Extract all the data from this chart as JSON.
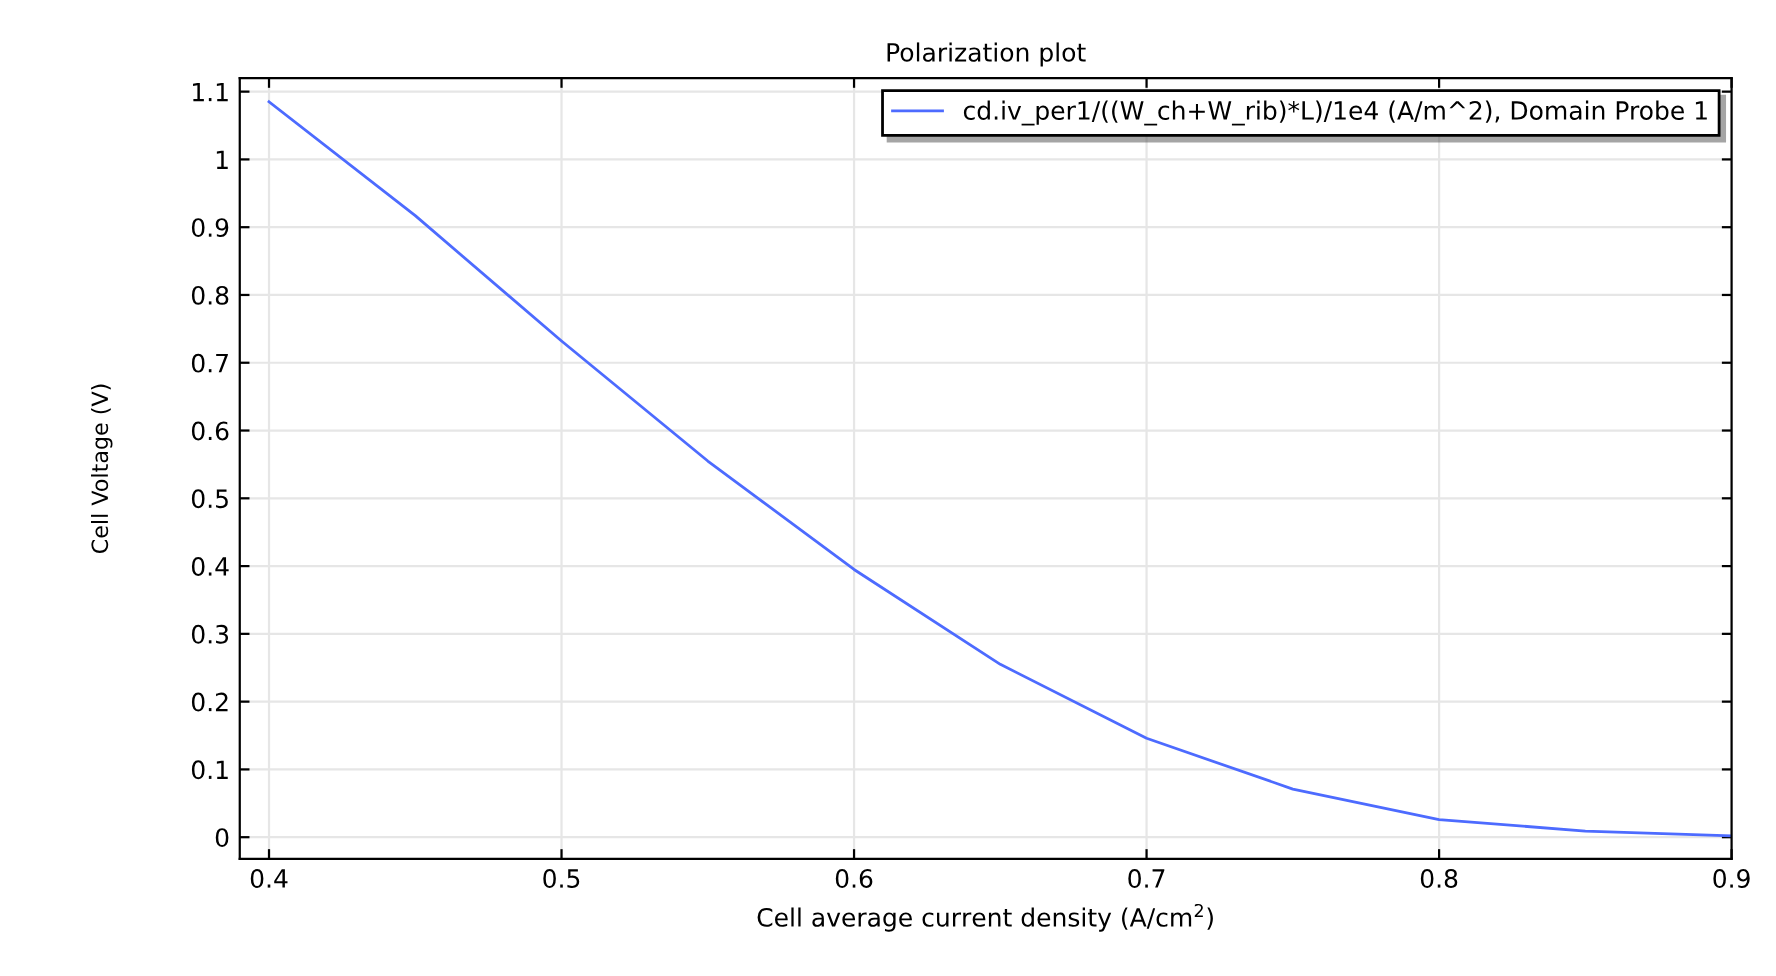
{
  "chart_data": {
    "type": "line",
    "title": "Polarization plot",
    "xlabel": "Cell average current density (A/cm$^{2}$)",
    "ylabel": "Cell Voltage (V)",
    "x": [
      0.4,
      0.45,
      0.5,
      0.55,
      0.6,
      0.65,
      0.7,
      0.75,
      0.8,
      0.85,
      0.9
    ],
    "series": [
      {
        "name": "cd.iv_per1/((W_ch+W_rib)*L)/1e4 (A/m^2), Domain Probe 1",
        "color": "#4d6bff",
        "values": [
          1.085,
          0.917,
          0.732,
          0.555,
          0.395,
          0.255,
          0.146,
          0.071,
          0.026,
          0.009,
          0.002
        ]
      }
    ],
    "xlim": [
      0.39,
      0.9
    ],
    "ylim": [
      -0.032,
      1.12
    ],
    "xticks": [
      0.4,
      0.5,
      0.6,
      0.7,
      0.8,
      0.9
    ],
    "yticks": [
      0,
      0.1,
      0.2,
      0.3,
      0.4,
      0.5,
      0.6,
      0.7,
      0.8,
      0.9,
      1,
      1.1
    ],
    "grid": true,
    "legend": "top right",
    "marker": "none",
    "line_style": "solid"
  }
}
